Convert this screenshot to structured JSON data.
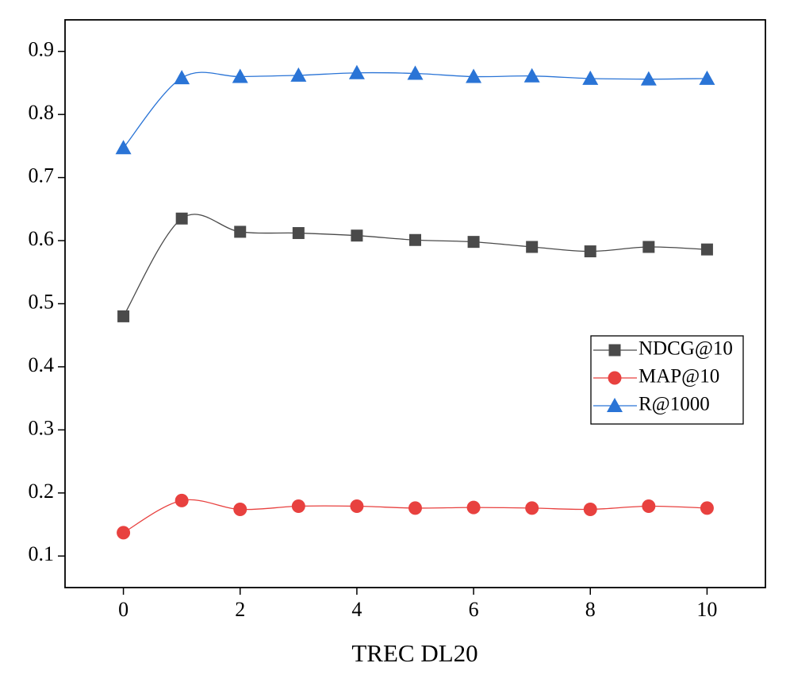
{
  "chart_data": {
    "type": "line",
    "x_label": "TREC DL20",
    "x": [
      0,
      1,
      2,
      3,
      4,
      5,
      6,
      7,
      8,
      9,
      10
    ],
    "xlim": [
      -1,
      11
    ],
    "xticks": [
      0,
      2,
      4,
      6,
      8,
      10
    ],
    "ylim": [
      0.05,
      0.95
    ],
    "yticks": [
      0.1,
      0.2,
      0.3,
      0.4,
      0.5,
      0.6,
      0.7,
      0.8,
      0.9
    ],
    "legend": "right",
    "series": [
      {
        "name": "NDCG@10",
        "color": "#4a4a4a",
        "marker": "square",
        "values": [
          0.48,
          0.635,
          0.614,
          0.612,
          0.608,
          0.601,
          0.598,
          0.59,
          0.583,
          0.59,
          0.586
        ]
      },
      {
        "name": "MAP@10",
        "color": "#e8413f",
        "marker": "circle",
        "values": [
          0.137,
          0.188,
          0.174,
          0.179,
          0.179,
          0.176,
          0.177,
          0.176,
          0.174,
          0.179,
          0.176
        ]
      },
      {
        "name": "R@1000",
        "color": "#2a74d6",
        "marker": "triangle",
        "values": [
          0.747,
          0.858,
          0.86,
          0.862,
          0.866,
          0.865,
          0.86,
          0.861,
          0.857,
          0.856,
          0.857
        ]
      }
    ]
  }
}
